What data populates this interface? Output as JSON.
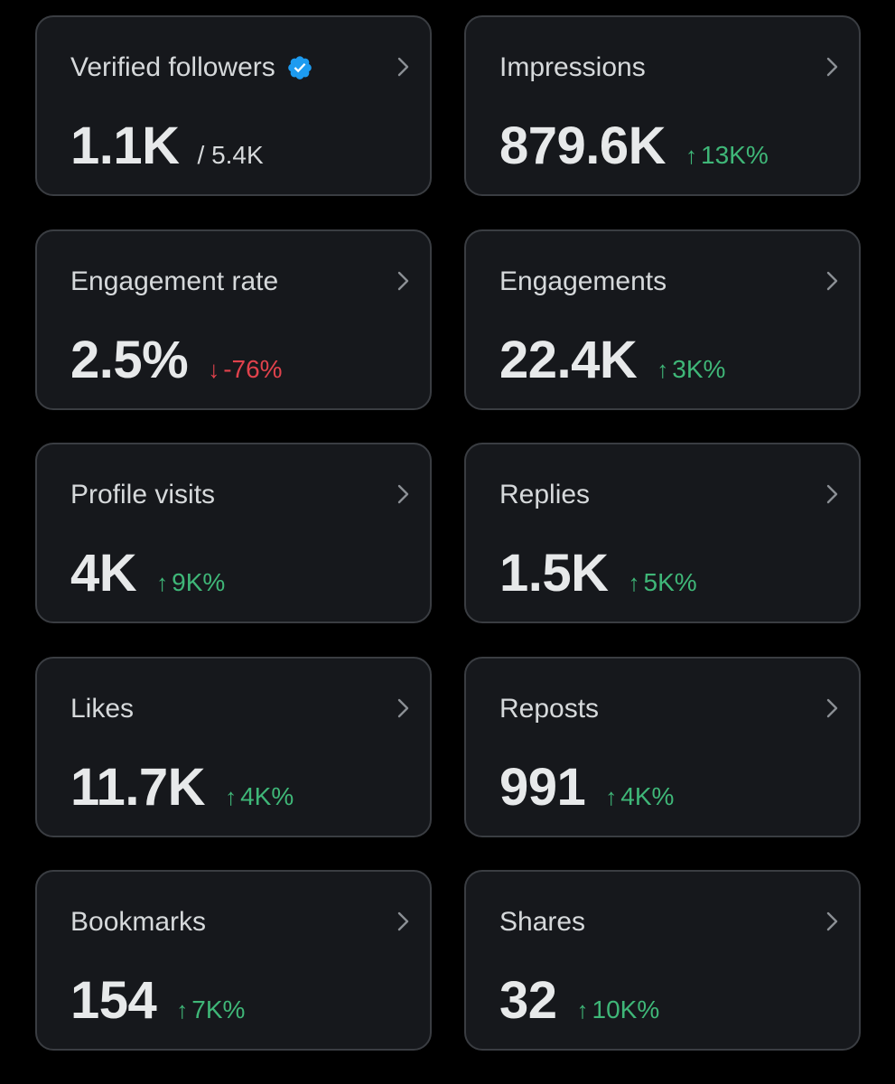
{
  "colors": {
    "background": "#000000",
    "card_background": "#16181c",
    "card_border": "#3a3d42",
    "value_text": "#e7e9ea",
    "label_text": "#d6d9db",
    "positive": "#3fb778",
    "negative": "#e0424c",
    "verified_badge": "#1d9bf0"
  },
  "cards": {
    "verified_followers": {
      "title": "Verified followers",
      "value": "1.1K",
      "total": "/ 5.4K",
      "badge_icon": "verified-badge-icon",
      "chevron_icon": "chevron-right-icon"
    },
    "impressions": {
      "title": "Impressions",
      "value": "879.6K",
      "arrow": "↑",
      "change": "13K%",
      "trend": "up",
      "chevron_icon": "chevron-right-icon"
    },
    "engagement_rate": {
      "title": "Engagement rate",
      "value": "2.5%",
      "arrow": "↓",
      "change": "-76%",
      "trend": "down",
      "chevron_icon": "chevron-right-icon"
    },
    "engagements": {
      "title": "Engagements",
      "value": "22.4K",
      "arrow": "↑",
      "change": "3K%",
      "trend": "up",
      "chevron_icon": "chevron-right-icon"
    },
    "profile_visits": {
      "title": "Profile visits",
      "value": "4K",
      "arrow": "↑",
      "change": "9K%",
      "trend": "up",
      "chevron_icon": "chevron-right-icon"
    },
    "replies": {
      "title": "Replies",
      "value": "1.5K",
      "arrow": "↑",
      "change": "5K%",
      "trend": "up",
      "chevron_icon": "chevron-right-icon"
    },
    "likes": {
      "title": "Likes",
      "value": "11.7K",
      "arrow": "↑",
      "change": "4K%",
      "trend": "up",
      "chevron_icon": "chevron-right-icon"
    },
    "reposts": {
      "title": "Reposts",
      "value": "991",
      "arrow": "↑",
      "change": "4K%",
      "trend": "up",
      "chevron_icon": "chevron-right-icon"
    },
    "bookmarks": {
      "title": "Bookmarks",
      "value": "154",
      "arrow": "↑",
      "change": "7K%",
      "trend": "up",
      "chevron_icon": "chevron-right-icon"
    },
    "shares": {
      "title": "Shares",
      "value": "32",
      "arrow": "↑",
      "change": "10K%",
      "trend": "up",
      "chevron_icon": "chevron-right-icon"
    }
  }
}
